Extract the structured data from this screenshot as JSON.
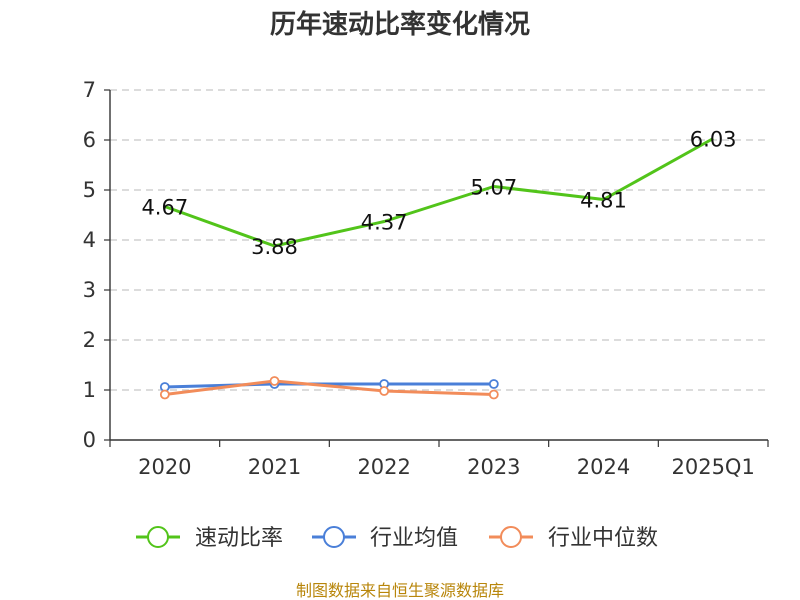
{
  "chart_data": {
    "type": "line",
    "title": "历年速动比率变化情况",
    "categories": [
      "2020",
      "2021",
      "2022",
      "2023",
      "2024",
      "2025Q1"
    ],
    "ylim": [
      0,
      7
    ],
    "yticks": [
      "0",
      "1",
      "2",
      "3",
      "4",
      "5",
      "6",
      "7"
    ],
    "grid": true,
    "legend_position": "bottom",
    "series": [
      {
        "name": "速动比率",
        "color": "#52c41a",
        "values": [
          4.67,
          3.88,
          4.37,
          5.07,
          4.81,
          6.03
        ],
        "labels": [
          "4.67",
          "3.88",
          "4.37",
          "5.07",
          "4.81",
          "6.03"
        ]
      },
      {
        "name": "行业均值",
        "color": "#4a7fd8",
        "values": [
          1.06,
          1.12,
          1.12,
          1.12,
          null,
          null
        ]
      },
      {
        "name": "行业中位数",
        "color": "#f28c5a",
        "values": [
          0.91,
          1.18,
          0.98,
          0.91,
          null,
          null
        ]
      }
    ]
  },
  "source": "制图数据来自恒生聚源数据库"
}
